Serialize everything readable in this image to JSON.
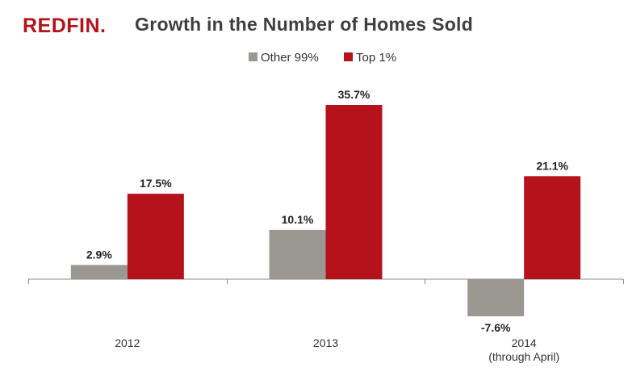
{
  "logo_text": "REDFIN.",
  "chart_data": {
    "type": "bar",
    "title": "Growth in the Number of Homes Sold",
    "categories": [
      "2012",
      "2013",
      "2014"
    ],
    "category_sublabels": [
      "",
      "",
      "(through April)"
    ],
    "series": [
      {
        "name": "Other 99%",
        "color": "#9b9892",
        "values": [
          2.9,
          10.1,
          -7.6
        ],
        "labels": [
          "2.9%",
          "10.1%",
          "-7.6%"
        ]
      },
      {
        "name": "Top 1%",
        "color": "#b5121b",
        "values": [
          17.5,
          35.7,
          21.1
        ],
        "labels": [
          "17.5%",
          "35.7%",
          "21.1%"
        ]
      }
    ],
    "xlabel": "",
    "ylabel": "",
    "ylim": [
      -10,
      40
    ],
    "grid": false,
    "legend_position": "top-center"
  }
}
